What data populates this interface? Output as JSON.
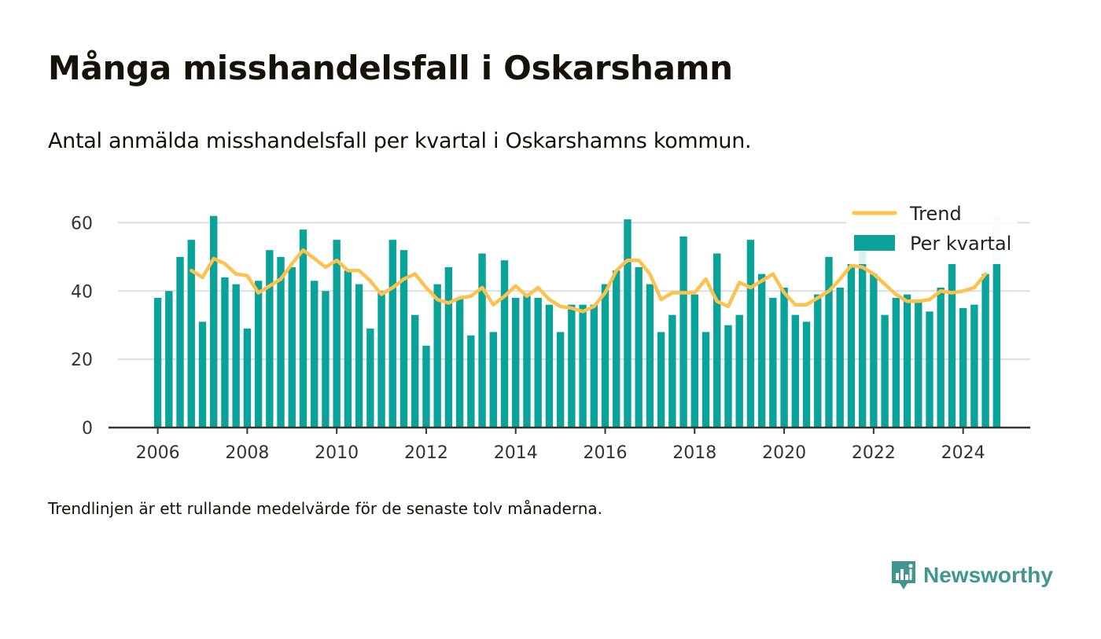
{
  "header": {
    "title": "Många misshandelsfall i Oskarshamn",
    "subtitle": "Antal anmälda misshandelsfall per kvartal i Oskarshamns kommun."
  },
  "footer": {
    "note": "Trendlinjen är ett rullande medelvärde för de senaste tolv månaderna.",
    "brand": "Newsworthy"
  },
  "colors": {
    "bars": "#0aa39a",
    "bar_highlight": "#cdeeec",
    "trend": "#fcc24d",
    "grid": "#dddddd",
    "brand": "#41978f"
  },
  "chart_data": {
    "type": "bar",
    "x_start": 2006.0,
    "x_step": 0.25,
    "xlim": [
      2004.9,
      2025.5
    ],
    "ylim": [
      0,
      70
    ],
    "yticks": [
      0,
      20,
      40,
      60
    ],
    "xticks": [
      2006,
      2008,
      2010,
      2012,
      2014,
      2016,
      2018,
      2020,
      2022,
      2024
    ],
    "grid": true,
    "legend_position": "top-right",
    "series": [
      {
        "name": "Per kvartal",
        "type": "bar",
        "values": [
          38,
          40,
          50,
          55,
          31,
          62,
          44,
          42,
          29,
          43,
          52,
          50,
          47,
          58,
          43,
          40,
          55,
          46,
          42,
          29,
          40,
          55,
          52,
          33,
          24,
          42,
          47,
          38,
          27,
          51,
          28,
          49,
          38,
          39,
          38,
          36,
          28,
          36,
          36,
          36,
          42,
          46,
          61,
          47,
          42,
          28,
          33,
          56,
          39,
          28,
          51,
          30,
          33,
          55,
          45,
          38,
          41,
          33,
          31,
          39,
          50,
          41,
          48,
          53,
          45,
          33,
          38,
          39,
          37,
          34,
          41,
          48,
          35,
          36,
          45,
          62
        ]
      },
      {
        "name": "Trend",
        "type": "line",
        "start_index": 3,
        "values": [
          46,
          44,
          49.5,
          48,
          45,
          44.5,
          39.5,
          41.5,
          43.5,
          48,
          52,
          49.5,
          47,
          49,
          46,
          46,
          43,
          39,
          41,
          43.5,
          45,
          41,
          37.5,
          36.5,
          38,
          38.5,
          41,
          36,
          38.5,
          41.5,
          38.5,
          41,
          37.5,
          35.5,
          35,
          34,
          35.5,
          39.5,
          46,
          49,
          49,
          45,
          37.5,
          39.5,
          39.5,
          39.5,
          43.5,
          37,
          35.5,
          42.5,
          41,
          43,
          45,
          39.5,
          36,
          36,
          38,
          40,
          43.5,
          47.5,
          47,
          45,
          42,
          39,
          37,
          37,
          37.5,
          40,
          39.5,
          40,
          41,
          45
        ]
      }
    ]
  }
}
